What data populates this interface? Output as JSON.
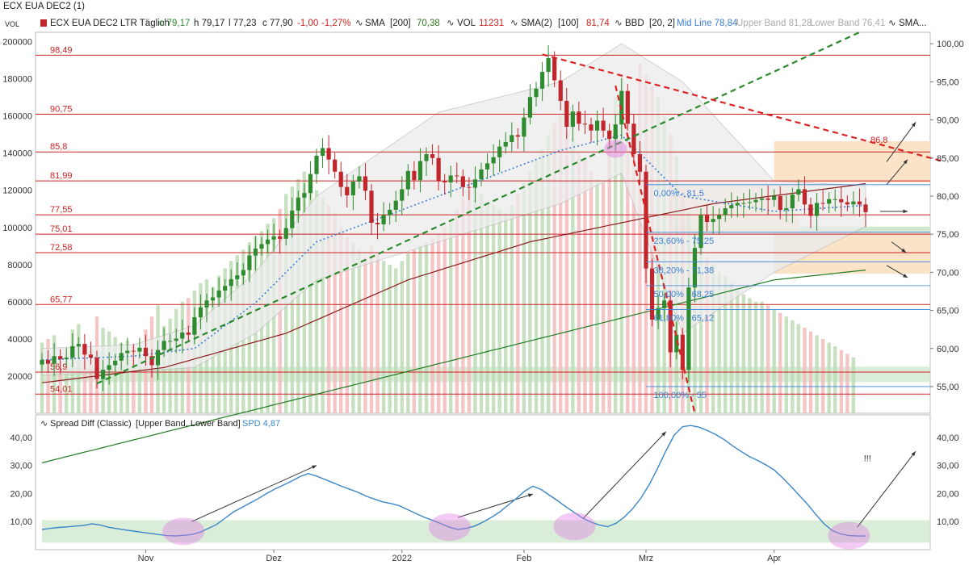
{
  "window_title": "ECX EUA DEC2 (1)",
  "header": {
    "vol_tag": "VOL",
    "instrument": "ECX EUA DEC2 LTR Täglich",
    "open": "o 79,17",
    "high": "h 79,17",
    "low": "l 77,23",
    "close": "c 77,90",
    "change": "-1,00",
    "change_pct": "-1,27%",
    "indicators": [
      {
        "name": "SMA",
        "params": "[200]",
        "value": "70,38",
        "color": "#2a7a1a"
      },
      {
        "name": "VOL",
        "params": "",
        "value": "11231",
        "color": "#cc2222"
      },
      {
        "name": "SMA(2)",
        "params": "[100]",
        "value": "81,74",
        "color": "#cc2222"
      }
    ],
    "bbd": "BBD",
    "bbd_params": "[20, 2]",
    "mid_line": "Mid Line 78,84",
    "upper_band": "Upper Band 81,28",
    "lower_band": "Lower Band 76,41",
    "sma_more": "SMA..."
  },
  "colors": {
    "up": "#2e8b2e",
    "down": "#c0262b",
    "hline": "#cc2222",
    "sma200": "#1f7a1f",
    "sma100": "#8b1a1a",
    "sma50": "#c050c8",
    "bb_mid": "#3a7fd8",
    "spread": "#3a86c8",
    "fib": "#3a7fd8",
    "green_zone": "#cfe8cf",
    "orange_zone": "#fbe3c8",
    "band_fill": "#ececec"
  },
  "chart_data": [
    {
      "type": "candlestick",
      "title": "",
      "price_axis": {
        "ticks": [
          "100,00",
          "95,00",
          "90,00",
          "85,00",
          "80,00",
          "75,00",
          "70,00",
          "65,00",
          "60,00",
          "55,00"
        ],
        "range": [
          51.5,
          101.5
        ]
      },
      "volume_axis": {
        "ticks": [
          "200000",
          "180000",
          "160000",
          "140000",
          "120000",
          "100000",
          "80000",
          "60000",
          "40000",
          "20000"
        ],
        "range": [
          0,
          205000
        ]
      },
      "x_labels": [
        {
          "label": "Nov",
          "index": 17
        },
        {
          "label": "Dez",
          "index": 38
        },
        {
          "label": "2022",
          "index": 59
        },
        {
          "label": "Feb",
          "index": 79
        },
        {
          "label": "Mrz",
          "index": 99
        },
        {
          "label": "Apr",
          "index": 120
        }
      ],
      "horizontal_levels": [
        {
          "label": "98,49",
          "value": 98.49
        },
        {
          "label": "90,75",
          "value": 90.75
        },
        {
          "label": "85,8",
          "value": 85.8
        },
        {
          "label": "81,99",
          "value": 81.99
        },
        {
          "label": "77,55",
          "value": 77.55
        },
        {
          "label": "75,01",
          "value": 75.01
        },
        {
          "label": "72,58",
          "value": 72.58
        },
        {
          "label": "65,77",
          "value": 65.77
        },
        {
          "label": "56,9",
          "value": 56.9
        },
        {
          "label": "54,01",
          "value": 54.01
        }
      ],
      "fib_levels": [
        {
          "label": "0,00% - 81,5",
          "value": 81.5
        },
        {
          "label": "23,60% - 75,25",
          "value": 75.25
        },
        {
          "label": "38,20% - 71,38",
          "value": 71.38
        },
        {
          "label": "50,00% - 68,25",
          "value": 68.25
        },
        {
          "label": "61,80% - 65,12",
          "value": 65.12
        },
        {
          "label": "100,00% - 55",
          "value": 55
        }
      ],
      "annotations": [
        {
          "label": "86,8",
          "value": 86.8
        }
      ],
      "closes": [
        58.5,
        58.0,
        59.0,
        58.6,
        58.8,
        60.3,
        60.6,
        59.2,
        58.8,
        56.0,
        57.2,
        57.8,
        58.4,
        59.4,
        59.7,
        59.6,
        60.1,
        59.0,
        57.8,
        59.8,
        61.0,
        61.0,
        61.3,
        62.1,
        61.8,
        64.1,
        65.4,
        66.3,
        66.7,
        67.6,
        68.2,
        69.1,
        69.6,
        70.3,
        72.2,
        73.1,
        73.7,
        74.3,
        74.7,
        74.4,
        75.8,
        78.1,
        79.8,
        80.4,
        82.9,
        85.3,
        86.3,
        84.8,
        83.2,
        81.2,
        80.1,
        81.9,
        82.6,
        80.7,
        76.5,
        76.3,
        77.5,
        78.2,
        79.4,
        80.9,
        83.3,
        82.1,
        84.6,
        85.5,
        85.0,
        82.0,
        81.8,
        82.7,
        82.6,
        81.2,
        81.1,
        82.2,
        83.5,
        84.3,
        85.1,
        86.5,
        87.1,
        88.0,
        87.8,
        90.3,
        93.0,
        94.1,
        96.3,
        98.1,
        95.2,
        92.5,
        89.1,
        91.1,
        89.5,
        89.4,
        88.6,
        89.9,
        88.6,
        87.5,
        89.4,
        93.8,
        89.5,
        85.5,
        83.2,
        70.5,
        63.8,
        65.3,
        66.3,
        59.5,
        61.8,
        57.2,
        68.0,
        73.2,
        77.5,
        76.6,
        77.0,
        77.5,
        78.4,
        78.8,
        79.1,
        79.1,
        79.2,
        79.5,
        79.7,
        79.5,
        80.0,
        78.2,
        78.4,
        80.2,
        80.9,
        78.9,
        77.4,
        79.1,
        79.0,
        79.6,
        79.6,
        79.2,
        78.9,
        79.3,
        78.9,
        77.9
      ],
      "volume": [
        38000,
        40000,
        42000,
        28000,
        32000,
        45000,
        48000,
        36000,
        34000,
        52000,
        46000,
        44000,
        41000,
        38000,
        39000,
        36000,
        34000,
        45000,
        52000,
        58000,
        47000,
        51000,
        56000,
        60000,
        62000,
        66000,
        70000,
        72000,
        68000,
        74000,
        78000,
        82000,
        85000,
        88000,
        92000,
        95000,
        98000,
        102000,
        105000,
        110000,
        118000,
        122000,
        126000,
        130000,
        124000,
        120000,
        116000,
        112000,
        108000,
        100000,
        95000,
        92000,
        88000,
        84000,
        90000,
        86000,
        82000,
        80000,
        78000,
        82000,
        86000,
        88000,
        90000,
        92000,
        94000,
        96000,
        100000,
        104000,
        110000,
        116000,
        120000,
        122000,
        118000,
        114000,
        112000,
        110000,
        108000,
        112000,
        118000,
        124000,
        130000,
        136000,
        142000,
        150000,
        156000,
        160000,
        152000,
        148000,
        140000,
        136000,
        130000,
        126000,
        124000,
        150000,
        170000,
        180000,
        160000,
        154000,
        188000,
        182000,
        176000,
        170000,
        160000,
        150000,
        138000,
        120000,
        108000,
        98000,
        90000,
        84000,
        80000,
        76000,
        74000,
        70000,
        66000,
        64000,
        62000,
        60000,
        60000,
        58000,
        56000,
        54000,
        52000,
        50000,
        48000,
        46000,
        44000,
        42000,
        40000,
        38000,
        36000,
        34000,
        32000,
        30000
      ],
      "series": [
        {
          "name": "SMA [200]",
          "role": "sma200",
          "values": [
            45,
            50,
            55,
            60,
            65,
            69,
            70.38
          ],
          "at_index": [
            0,
            25,
            50,
            75,
            100,
            120,
            136
          ]
        },
        {
          "name": "SMA(2) [100]",
          "role": "sma100",
          "values": [
            55.5,
            57.5,
            62,
            69,
            74,
            79,
            81.74
          ],
          "at_index": [
            0,
            20,
            40,
            60,
            80,
            110,
            136
          ]
        },
        {
          "name": "Mid Line",
          "role": "bb_mid",
          "values": [
            58.5,
            59,
            60,
            66,
            74,
            80,
            86,
            88,
            80,
            78,
            78.84
          ],
          "at_index": [
            0,
            15,
            25,
            35,
            45,
            65,
            85,
            95,
            105,
            120,
            136
          ]
        }
      ],
      "trendlines": [
        {
          "name": "support",
          "from": [
            9,
            55.4
          ],
          "to": [
            134,
            101.5
          ],
          "style": "green-dashed"
        },
        {
          "name": "resistance",
          "from": [
            82,
            98.6
          ],
          "to": [
            148,
            84.5
          ],
          "style": "red-dashed"
        },
        {
          "name": "breakdown",
          "from": [
            94,
            94.5
          ],
          "to": [
            107,
            51.5
          ],
          "style": "red-dashed"
        }
      ],
      "bollinger": {
        "upper": [
          60,
          60.5,
          63,
          70,
          80,
          91,
          95,
          100,
          95,
          82,
          81.28
        ],
        "lower": [
          56.5,
          57,
          57.5,
          62,
          69,
          74,
          79,
          83,
          62,
          70,
          76.41
        ],
        "at_index": [
          0,
          15,
          25,
          35,
          45,
          65,
          85,
          95,
          105,
          120,
          136
        ]
      }
    },
    {
      "type": "line",
      "title": "Spread Diff (Classic)",
      "legend": "[Upper Band, Lower Band]",
      "last_value_label": "SPD 4,87",
      "y_ticks": [
        "40,00",
        "30,00",
        "20,00",
        "10,00"
      ],
      "ylim": [
        0,
        48
      ],
      "spd": [
        7.2,
        7.6,
        7.9,
        8.1,
        8.4,
        8.6,
        9.2,
        8.8,
        8.0,
        7.5,
        7.0,
        6.6,
        6.2,
        5.8,
        5.4,
        5.0,
        4.9,
        5.1,
        5.4,
        6.2,
        7.6,
        9.0,
        11.2,
        13.4,
        15.0,
        16.6,
        18.2,
        20.0,
        21.6,
        23.0,
        24.4,
        26.0,
        27.1,
        26.2,
        25.0,
        23.8,
        22.6,
        21.5,
        20.4,
        19.0,
        18.0,
        17.0,
        16.4,
        15.6,
        14.2,
        12.8,
        11.5,
        10.4,
        9.2,
        8.0,
        7.2,
        7.6,
        8.4,
        9.8,
        11.5,
        13.4,
        15.8,
        18.2,
        20.8,
        22.6,
        21.4,
        19.4,
        17.4,
        15.2,
        13.2,
        11.2,
        9.8,
        8.8,
        8.2,
        9.4,
        11.6,
        14.6,
        18.4,
        23.2,
        29.0,
        35.2,
        40.8,
        43.8,
        44.2,
        43.6,
        42.4,
        41.0,
        39.2,
        37.0,
        35.0,
        33.2,
        31.8,
        30.2,
        28.4,
        25.6,
        22.6,
        19.4,
        16.2,
        12.6,
        9.2,
        6.8,
        5.6,
        5.0,
        4.9,
        4.87
      ],
      "spd_at_index": [
        0,
        1,
        2,
        3,
        4,
        5,
        6,
        7,
        8,
        9,
        10,
        11,
        12,
        13,
        14,
        15,
        16,
        17,
        18,
        19,
        20,
        21,
        22,
        23,
        24,
        25,
        26,
        27,
        28,
        29,
        30,
        31,
        32,
        33,
        34,
        35,
        36,
        37,
        38,
        39,
        40,
        41,
        42,
        43,
        44,
        45,
        46,
        47,
        48,
        49,
        50,
        51,
        52,
        53,
        54,
        55,
        56,
        57,
        58,
        59,
        60,
        61,
        62,
        63,
        64,
        65,
        66,
        67,
        68,
        69,
        70,
        71,
        72,
        73,
        74,
        75,
        76,
        77,
        78,
        79,
        80,
        81,
        82,
        83,
        84,
        85,
        86,
        87,
        88,
        89,
        90,
        91,
        92,
        93,
        94,
        95,
        96,
        97,
        98,
        99
      ],
      "exclamation": "!!!"
    }
  ]
}
